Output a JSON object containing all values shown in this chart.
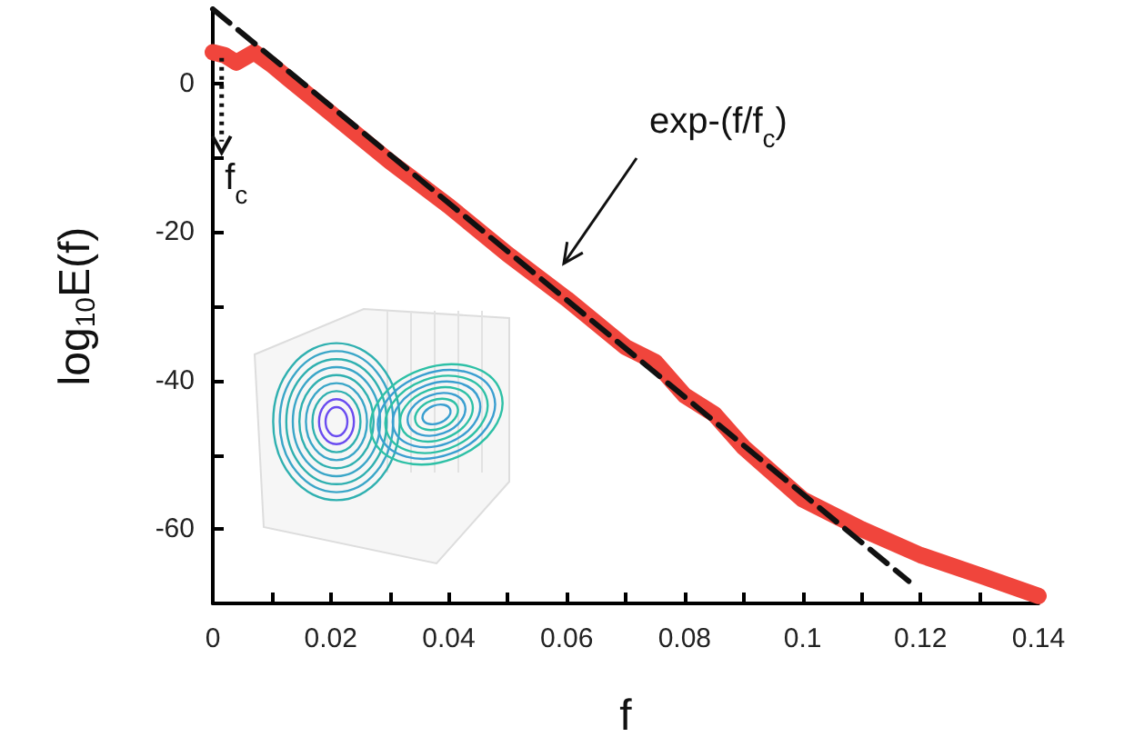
{
  "chart_data": {
    "type": "line",
    "xlabel": "f",
    "ylabel": "log$_{10}$E(f)",
    "xlim": [
      0,
      0.14
    ],
    "ylim": [
      -70,
      10
    ],
    "xticks": [
      0,
      {
        "value": 0.01,
        "label": null
      },
      0.02,
      {
        "value": 0.03,
        "label": null
      },
      0.04,
      {
        "value": 0.05,
        "label": null
      },
      0.06,
      {
        "value": 0.07,
        "label": null
      },
      0.08,
      {
        "value": 0.09,
        "label": null
      },
      0.1,
      {
        "value": 0.11,
        "label": null
      },
      0.12,
      {
        "value": 0.13,
        "label": null
      },
      0.14
    ],
    "yticks": [
      {
        "value": -70,
        "label": null
      },
      -60,
      {
        "value": -50,
        "label": null
      },
      -40,
      {
        "value": -30,
        "label": null
      },
      -20,
      {
        "value": -10,
        "label": null
      },
      0
    ],
    "marker": "none",
    "series": [
      {
        "color": "#f0453c",
        "line_style": "solid",
        "x": [
          0,
          0.002,
          0.004,
          0.007,
          0.01,
          0.013,
          0.02,
          0.03,
          0.04,
          0.05,
          0.06,
          0.07,
          0.075,
          0.08,
          0.085,
          0.09,
          0.1,
          0.11,
          0.12,
          0.13,
          0.14
        ],
        "values": [
          4.2,
          3.8,
          2.8,
          4.2,
          2.5,
          0.5,
          -4,
          -10.5,
          -16.5,
          -23,
          -29,
          -35.5,
          -37.5,
          -42,
          -44.5,
          -49,
          -56,
          -60,
          -63.5,
          -66.2,
          -69
        ]
      },
      {
        "color": "#111111",
        "line_style": "dashed",
        "x": [
          0,
          0.118
        ],
        "values": [
          10,
          -67
        ]
      }
    ],
    "annotations": [
      "exp-(f/f$_{c}$)",
      {
        "text": "f$_{c}$",
        "x": 0.0015,
        "y": 3.9
      }
    ]
  }
}
